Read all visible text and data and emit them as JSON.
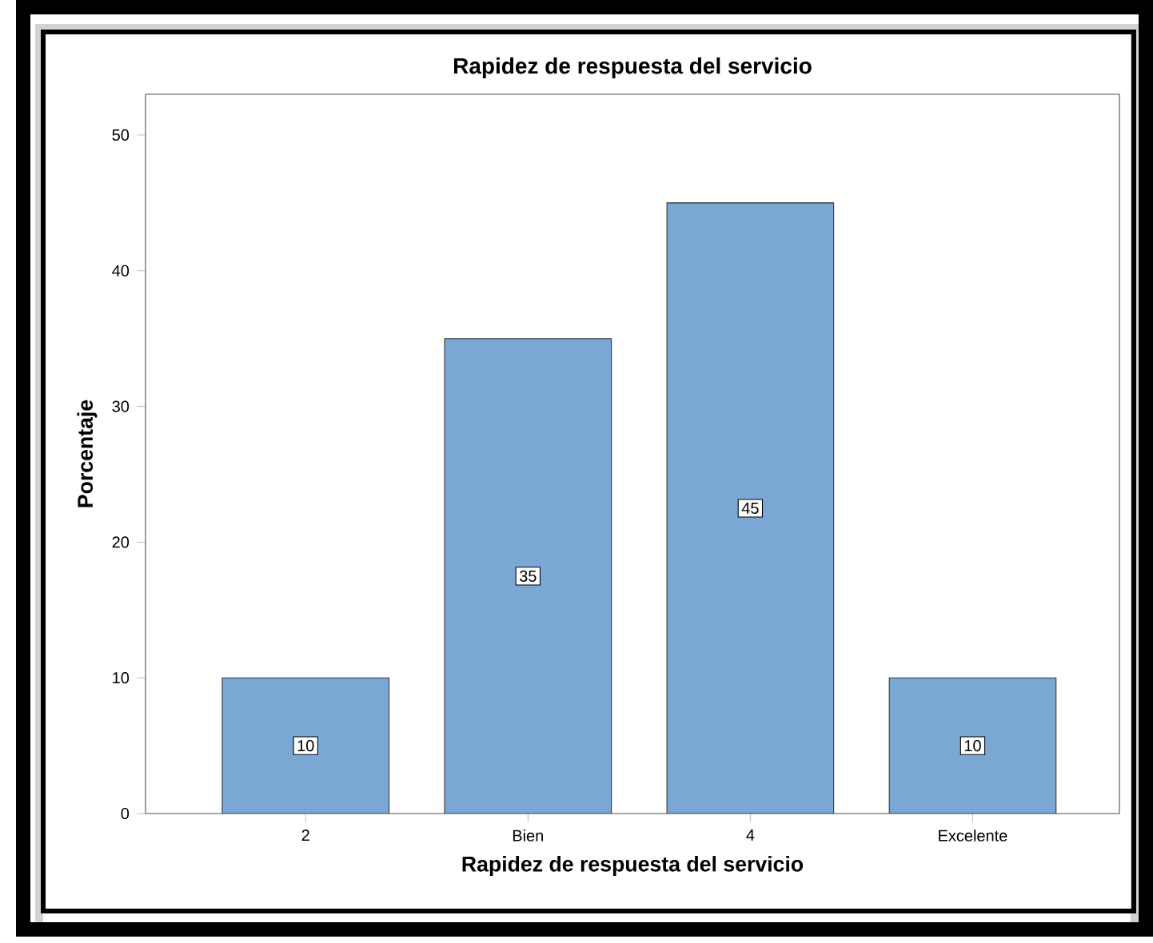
{
  "chart_data": {
    "type": "bar",
    "title": "Rapidez de respuesta del servicio",
    "xlabel": "Rapidez de respuesta del servicio",
    "ylabel": "Porcentaje",
    "categories": [
      "2",
      "Bien",
      "4",
      "Excelente"
    ],
    "values": [
      10,
      35,
      45,
      10
    ],
    "color": "#7ba7d5",
    "ylim": [
      0,
      53
    ],
    "yticks": [
      0,
      10,
      20,
      30,
      40,
      50
    ],
    "data_labels": true
  }
}
